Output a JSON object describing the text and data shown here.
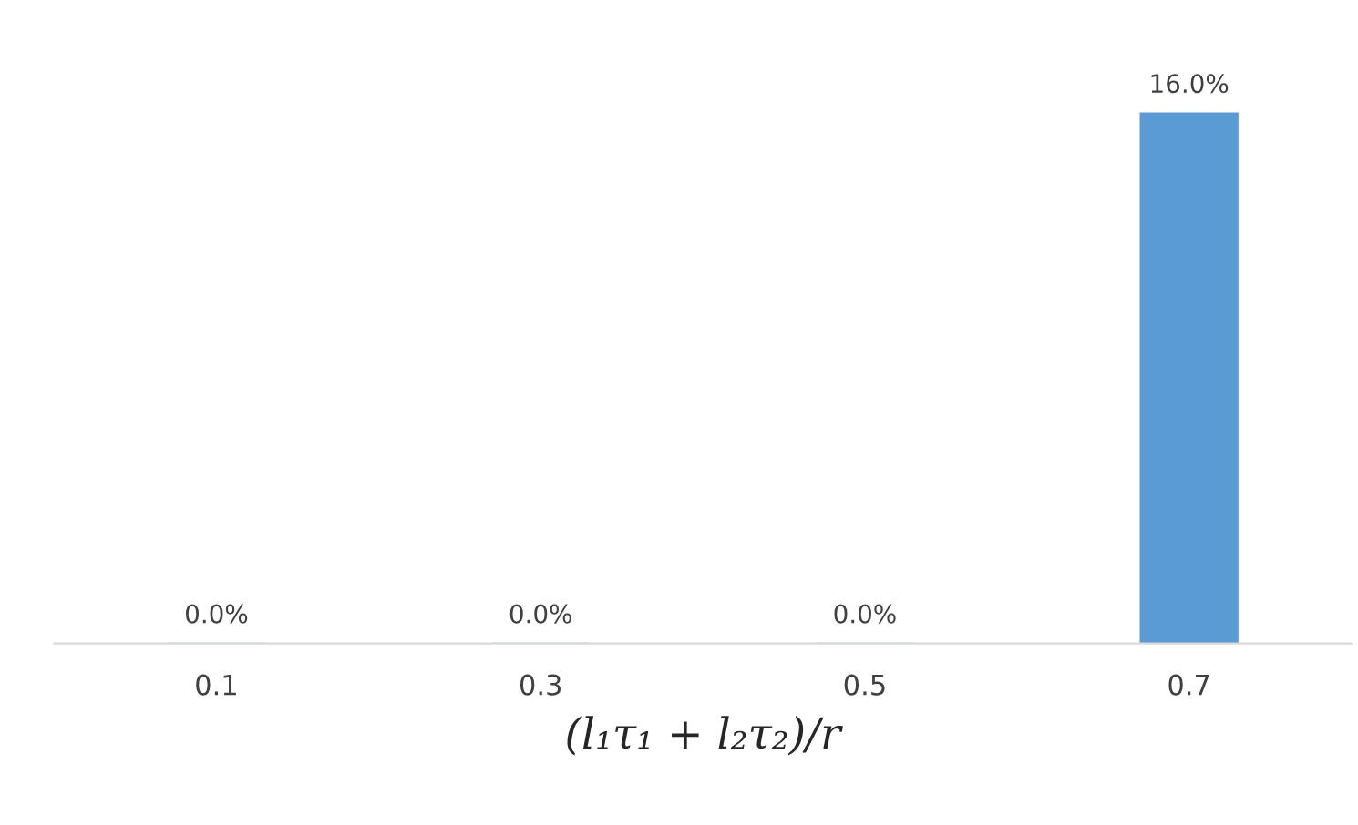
{
  "chart_data": {
    "type": "bar",
    "xlabel": "(l₁τ₁ + l₂τ₂)/r",
    "categories": [
      "0.1",
      "0.3",
      "0.5",
      "0.7"
    ],
    "values": [
      0,
      0,
      0,
      16
    ],
    "color": "#5b9bd5",
    "value_labels": [
      "0.0%",
      "0.0%",
      "0.0%",
      "16.0%"
    ],
    "grid": false,
    "legend": false
  }
}
